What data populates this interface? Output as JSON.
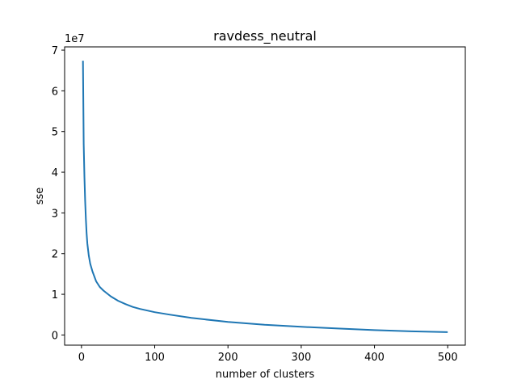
{
  "chart_data": {
    "type": "line",
    "title": "ravdess_neutral",
    "xlabel": "number of clusters",
    "ylabel": "sse",
    "y_offset_label": "1e7",
    "xlim": [
      -23,
      524
    ],
    "ylim": [
      -2.5,
      70.8
    ],
    "x_ticks": [
      0,
      100,
      200,
      300,
      400,
      500
    ],
    "y_ticks": [
      0,
      10,
      20,
      30,
      40,
      50,
      60,
      70
    ],
    "y_tick_labels": [
      "0",
      "1",
      "2",
      "3",
      "4",
      "5",
      "6",
      "7"
    ],
    "grid": false,
    "series": [
      {
        "color": "#1f77b4",
        "x": [
          2,
          3,
          4,
          5,
          6,
          7,
          8,
          10,
          12,
          15,
          20,
          25,
          30,
          40,
          50,
          60,
          70,
          80,
          100,
          120,
          150,
          200,
          250,
          300,
          350,
          400,
          450,
          500
        ],
        "y": [
          67.4,
          47.0,
          39.0,
          33.0,
          28.5,
          25.0,
          22.5,
          19.5,
          17.5,
          15.6,
          13.2,
          11.8,
          10.9,
          9.5,
          8.4,
          7.6,
          6.9,
          6.4,
          5.6,
          5.0,
          4.2,
          3.2,
          2.5,
          2.0,
          1.6,
          1.2,
          0.9,
          0.7
        ]
      }
    ]
  }
}
